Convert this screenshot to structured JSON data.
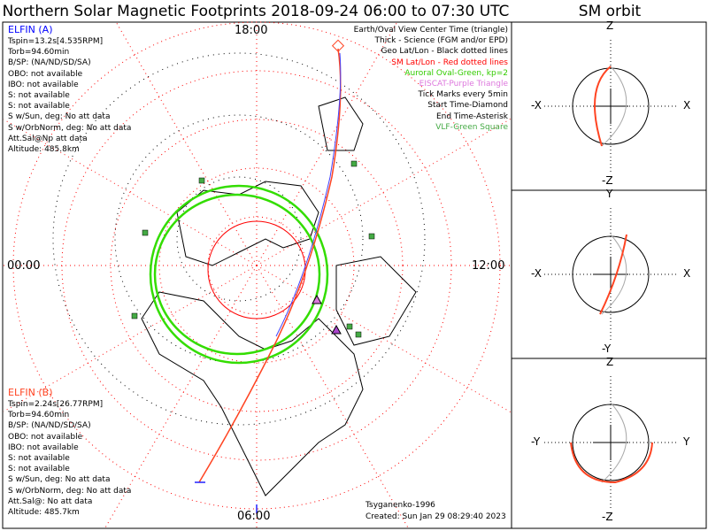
{
  "title": "Northern Solar Magnetic Footprints 2018-09-24 06:00 to 07:30 UTC",
  "orbit_title": "SM orbit",
  "map_labels": {
    "top": "18:00",
    "bottom": "06:00",
    "left": "00:00",
    "right": "12:00"
  },
  "elfin_a": {
    "name": "ELFIN (A)",
    "lines": [
      "Tspin=13.2s[4.535RPM]",
      "Torb=94.60min",
      "B/SP: (NA/ND/SD/SA)",
      "OBO: not available",
      "IBO: not available",
      "S: not available",
      "S: not available",
      "S w/Sun, deg: No att data",
      "S w/OrbNorm, deg: No att data",
      "Att.Sal@Np att data",
      "Altitude: 485.8km"
    ]
  },
  "elfin_b": {
    "name": "ELFIN (B)",
    "lines": [
      "Tspin=2.24s[26.77RPM]",
      "Torb=94.60min",
      "B/SP: (NA/ND/SD/SA)",
      "OBO: not available",
      "IBO: not available",
      "S: not available",
      "S: not available",
      "S w/Sun, deg: No att data",
      "S w/OrbNorm, deg: No att data",
      "Att.Sal@: No att data",
      "Altitude: 485.7km"
    ]
  },
  "legend": [
    {
      "text": "Earth/Oval View Center Time (triangle)",
      "color": "#000000"
    },
    {
      "text": "Thick - Science (FGM and/or EPD)",
      "color": "#000000"
    },
    {
      "text": "Geo Lat/Lon - Black dotted lines",
      "color": "#000000"
    },
    {
      "text": "SM Lat/Lon - Red dotted lines",
      "color": "#ff0000"
    },
    {
      "text": "Auroral Oval-Green, kp=2",
      "color": "#33cc00"
    },
    {
      "text": "EISCAT-Purple Triangle",
      "color": "#dd77dd"
    },
    {
      "text": "Tick Marks every 5min",
      "color": "#000000"
    },
    {
      "text": "Start Time-Diamond",
      "color": "#000000"
    },
    {
      "text": "End Time-Asterisk",
      "color": "#000000"
    },
    {
      "text": "VLF-Green Square",
      "color": "#44aa44"
    }
  ],
  "credit": {
    "model": "Tsyganenko-1996",
    "created": "Created: Sun Jan 29 08:29:40 2023"
  },
  "orbit_panels": [
    {
      "top": "Z",
      "bottom": "-Z",
      "left": "-X",
      "right": "X"
    },
    {
      "top": "Y",
      "bottom": "-Y",
      "left": "-X",
      "right": "X"
    },
    {
      "top": "Z",
      "bottom": "-Z",
      "left": "-Y",
      "right": "Y"
    }
  ],
  "colors": {
    "elfin_a": "#0000ff",
    "elfin_b": "#ff4422",
    "oval": "#33dd00",
    "sm_grid": "#ff0000"
  }
}
